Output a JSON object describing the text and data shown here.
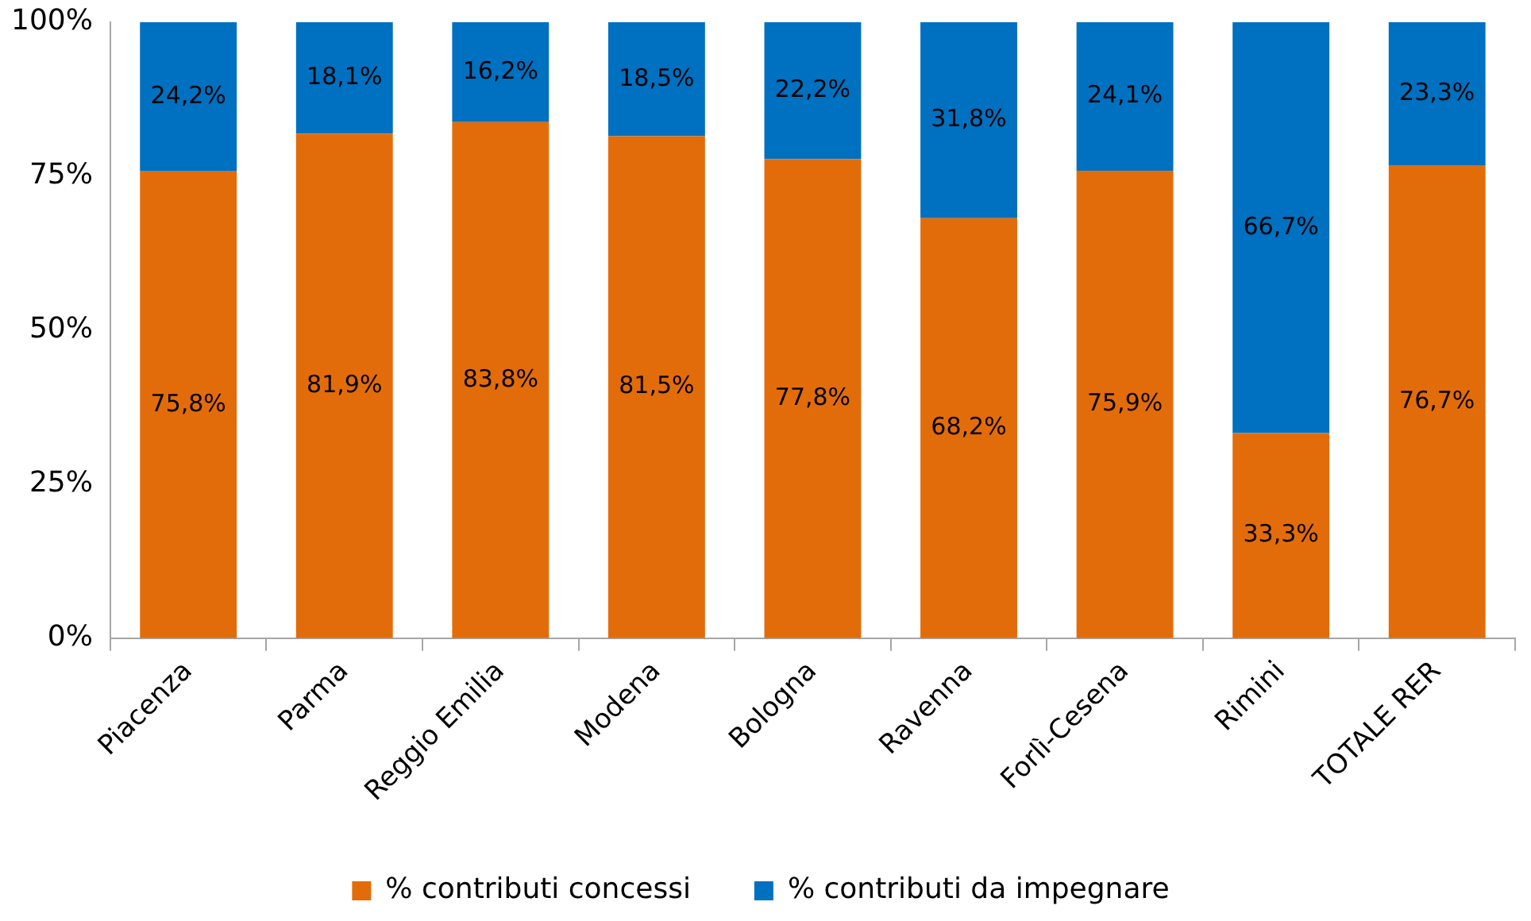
{
  "chart_data": {
    "type": "bar",
    "stacked": true,
    "categories": [
      "Piacenza",
      "Parma",
      "Reggio Emilia",
      "Modena",
      "Bologna",
      "Ravenna",
      "Forlì-Cesena",
      "Rimini",
      "TOTALE RER"
    ],
    "series": [
      {
        "name": "% contributi concessi",
        "color": "#e36c0a",
        "values": [
          75.8,
          81.9,
          83.8,
          81.5,
          77.8,
          68.2,
          75.9,
          33.3,
          76.7
        ],
        "value_labels": [
          "75,8%",
          "81,9%",
          "83,8%",
          "81,5%",
          "77,8%",
          "68,2%",
          "75,9%",
          "33,3%",
          "76,7%"
        ]
      },
      {
        "name": "% contributi da impegnare",
        "color": "#0070c0",
        "values": [
          24.2,
          18.1,
          16.2,
          18.5,
          22.2,
          31.8,
          24.1,
          66.7,
          23.3
        ],
        "value_labels": [
          "24,2%",
          "18,1%",
          "16,2%",
          "18,5%",
          "22,2%",
          "31,8%",
          "24,1%",
          "66,7%",
          "23,3%"
        ]
      }
    ],
    "ylim": [
      0,
      100
    ],
    "yticks": [
      {
        "value": 0,
        "label": "0%"
      },
      {
        "value": 25,
        "label": "25%"
      },
      {
        "value": 50,
        "label": "50%"
      },
      {
        "value": 75,
        "label": "75%"
      },
      {
        "value": 100,
        "label": "100%"
      }
    ],
    "grid": false,
    "legend": "bottom"
  }
}
